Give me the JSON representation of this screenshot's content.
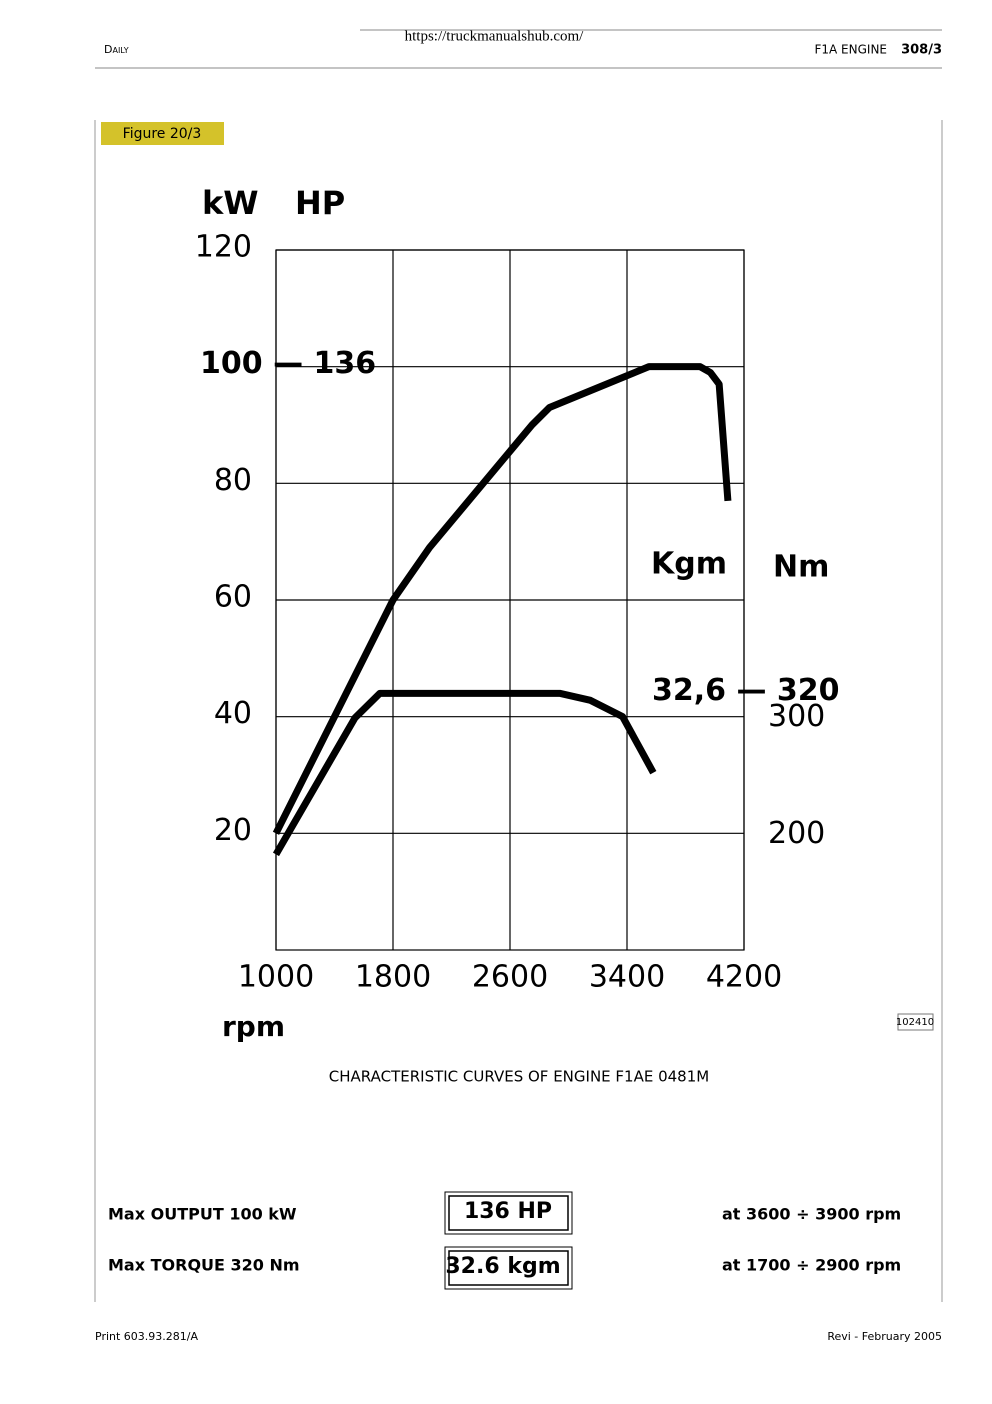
{
  "header": {
    "url": "https://truckmanualshub.com/",
    "left": "Daily",
    "section": "F1A ENGINE",
    "page": "308/3"
  },
  "figure_label": "Figure 20/3",
  "chart_data": {
    "type": "line",
    "ylabel": [
      "kW",
      "HP"
    ],
    "y2label": [
      "Kgm",
      "Nm"
    ],
    "xlabel": "rpm",
    "xlim": [
      1000,
      4200
    ],
    "xticks": [
      1000,
      1800,
      2600,
      3400,
      4200
    ],
    "ylim": [
      0,
      120
    ],
    "yticks": [
      20,
      40,
      60,
      80,
      {
        "value": 100,
        "label": "100 — 136"
      },
      120
    ],
    "y2lim": [
      100,
      700
    ],
    "y2ticks": [
      200,
      300,
      {
        "value": 320,
        "label": "32,6 — 320"
      }
    ],
    "grid": true,
    "series": [
      {
        "color": "#000000",
        "x": [
          1000,
          1800,
          2050,
          2750,
          2870,
          3550,
          3900,
          3970,
          4030,
          4090
        ],
        "values": [
          20,
          60,
          69,
          90,
          93,
          100,
          100,
          99,
          97,
          77
        ]
      },
      {
        "color": "#000000",
        "axis": "y2",
        "x": [
          1000,
          1540,
          1710,
          2940,
          3150,
          3370,
          3580
        ],
        "values": [
          182,
          299,
          320,
          320,
          314,
          300,
          252
        ]
      }
    ]
  },
  "caption": "CHARACTERISTIC CURVES OF ENGINE F1AE 0481M",
  "image_code": "102410",
  "specs": {
    "rows": [
      [
        "Max OUTPUT 100 kW",
        "136 HP",
        "at 3600 ÷ 3900 rpm"
      ],
      [
        "Max TORQUE 320 Nm",
        "32.6 kgm",
        "at 1700 ÷ 2900 rpm"
      ]
    ]
  },
  "footer": {
    "left": "Print 603.93.281/A",
    "right": "Revi - February 2005"
  }
}
